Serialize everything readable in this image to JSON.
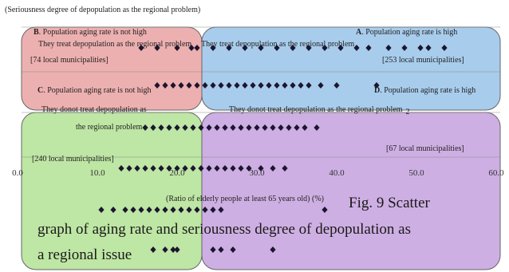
{
  "chart_data": {
    "type": "scatter",
    "title": "(Seriousness degree of depopulation as the regional problem)",
    "xlabel": "(Ratio of elderly people at least 65 years old) (%)",
    "xlim": [
      0,
      60
    ],
    "x_ticks": [
      "0.0",
      "10.0",
      "20.0",
      "30.0",
      "40.0",
      "50.0",
      "60.0"
    ],
    "quadrants": {
      "A": {
        "letter": "A",
        "title": ". Population aging rate is high",
        "desc": "They treat depopulation as the regional problem",
        "count": "[253 local municipalities]",
        "color": "#9fc6ea"
      },
      "B": {
        "letter": "B",
        "title": ". Population aging rate is not high",
        "desc": "They treat depopulation as the regional problem",
        "count": "[74 local municipalities]",
        "color": "#eba7a7"
      },
      "C": {
        "letter": "C",
        "title": ". Population aging rate is not high",
        "desc_line1": "They donot treat depopulation as",
        "desc_line2": "the regional problem",
        "count": "[240 local municipalities]",
        "color": "#b7e39a"
      },
      "D": {
        "letter": "D",
        "title": ". Population aging rate is high",
        "desc": "They donot treat depopulation as the regional problem",
        "desc_suffix": "2",
        "count": "[67 local municipalities]",
        "color": "#c9a6e0"
      }
    },
    "series": [
      {
        "level": 5,
        "x": [
          15.5,
          17.5,
          20,
          21.8,
          22.5,
          24.5,
          26.5,
          28.5,
          30.5,
          32.5,
          34.5,
          36.5,
          38.5,
          40.5,
          42.5,
          44,
          46.5,
          48.5,
          50.5,
          51.5,
          53.5
        ]
      },
      {
        "level": 4,
        "x": [
          17.5,
          18.5,
          19.5,
          20.5,
          21.5,
          22.5,
          23.5,
          24.5,
          25.5,
          26.5,
          27.5,
          28.5,
          29.5,
          30.5,
          31.5,
          32.5,
          33.5,
          34.5,
          35.5,
          36.5,
          38,
          40,
          45
        ]
      },
      {
        "level": 3,
        "x": [
          16,
          17,
          18,
          19,
          20,
          21,
          22,
          23,
          24,
          25,
          26,
          27,
          28,
          29,
          30,
          31,
          32,
          33,
          34,
          35,
          36,
          37.5
        ]
      },
      {
        "level": 2,
        "x": [
          13,
          14,
          15,
          16,
          17,
          18,
          19,
          20,
          21,
          22,
          23,
          24,
          25,
          26,
          27,
          28,
          29,
          30.5,
          32,
          33.5
        ]
      },
      {
        "level": 1,
        "x": [
          10.5,
          12,
          13.5,
          14.5,
          15.5,
          16.5,
          17.5,
          18.5,
          19.5,
          20.5,
          21.5,
          22.5,
          23.5,
          24.5,
          25.5,
          38.5
        ]
      },
      {
        "level": 0,
        "x": [
          17,
          18.5,
          19.5,
          20,
          24.5,
          25.5,
          27,
          32
        ]
      }
    ],
    "caption": {
      "line1": "Fig. 9 Scatter",
      "line2": "graph of aging rate and seriousness degree of depopulation as",
      "line3": "a regional issue"
    }
  }
}
